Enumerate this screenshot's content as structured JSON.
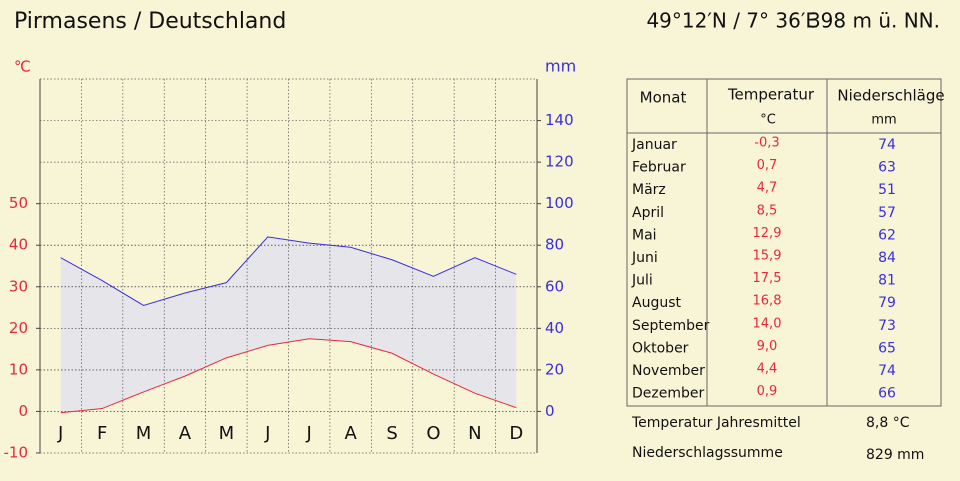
{
  "header": {
    "title": "Pirmasens / Deutschland",
    "coordinates": "49°12′N / 7° 36′E",
    "elevation": "398 m ü. NN."
  },
  "chart_data": {
    "type": "line",
    "categories": [
      "J",
      "F",
      "M",
      "A",
      "M",
      "J",
      "J",
      "A",
      "S",
      "O",
      "N",
      "D"
    ],
    "y_label": "℃",
    "y2_label": "mm",
    "ylim": [
      -10,
      80
    ],
    "yticks": [
      -10,
      0,
      10,
      20,
      30,
      40,
      50
    ],
    "y2lim": [
      -20,
      160
    ],
    "y2ticks": [
      0,
      20,
      40,
      60,
      80,
      100,
      120,
      140
    ],
    "grid": true,
    "series": [
      {
        "name": "Temperatur",
        "color": "#e8283c",
        "axis": "y",
        "values": [
          -0.3,
          0.7,
          4.7,
          8.5,
          12.9,
          15.9,
          17.5,
          16.8,
          14.0,
          9.0,
          4.4,
          0.9
        ],
        "value_labels": [
          "-0,3",
          "0,7",
          "4,7",
          "8,5",
          "12,9",
          "15,9",
          "17,5",
          "16,8",
          "14,0",
          "9,0",
          "4,4",
          "0,9"
        ]
      },
      {
        "name": "Niederschläge",
        "color": "#3a2ee0",
        "axis": "y2",
        "values": [
          74,
          63,
          51,
          57,
          62,
          84,
          81,
          79,
          73,
          65,
          74,
          66
        ]
      }
    ]
  },
  "table": {
    "header": [
      "Monat",
      "Temperatur",
      "Niederschläge"
    ],
    "units": [
      "°C",
      "mm"
    ],
    "months": [
      "Januar",
      "Februar",
      "März",
      "April",
      "Mai",
      "Juni",
      "Juli",
      "August",
      "September",
      "Oktober",
      "November",
      "Dezember"
    ],
    "footer": [
      [
        "Temperatur Jahresmittel",
        "8,8 °C"
      ],
      [
        "Niederschlagssumme",
        "829 mm"
      ]
    ]
  }
}
